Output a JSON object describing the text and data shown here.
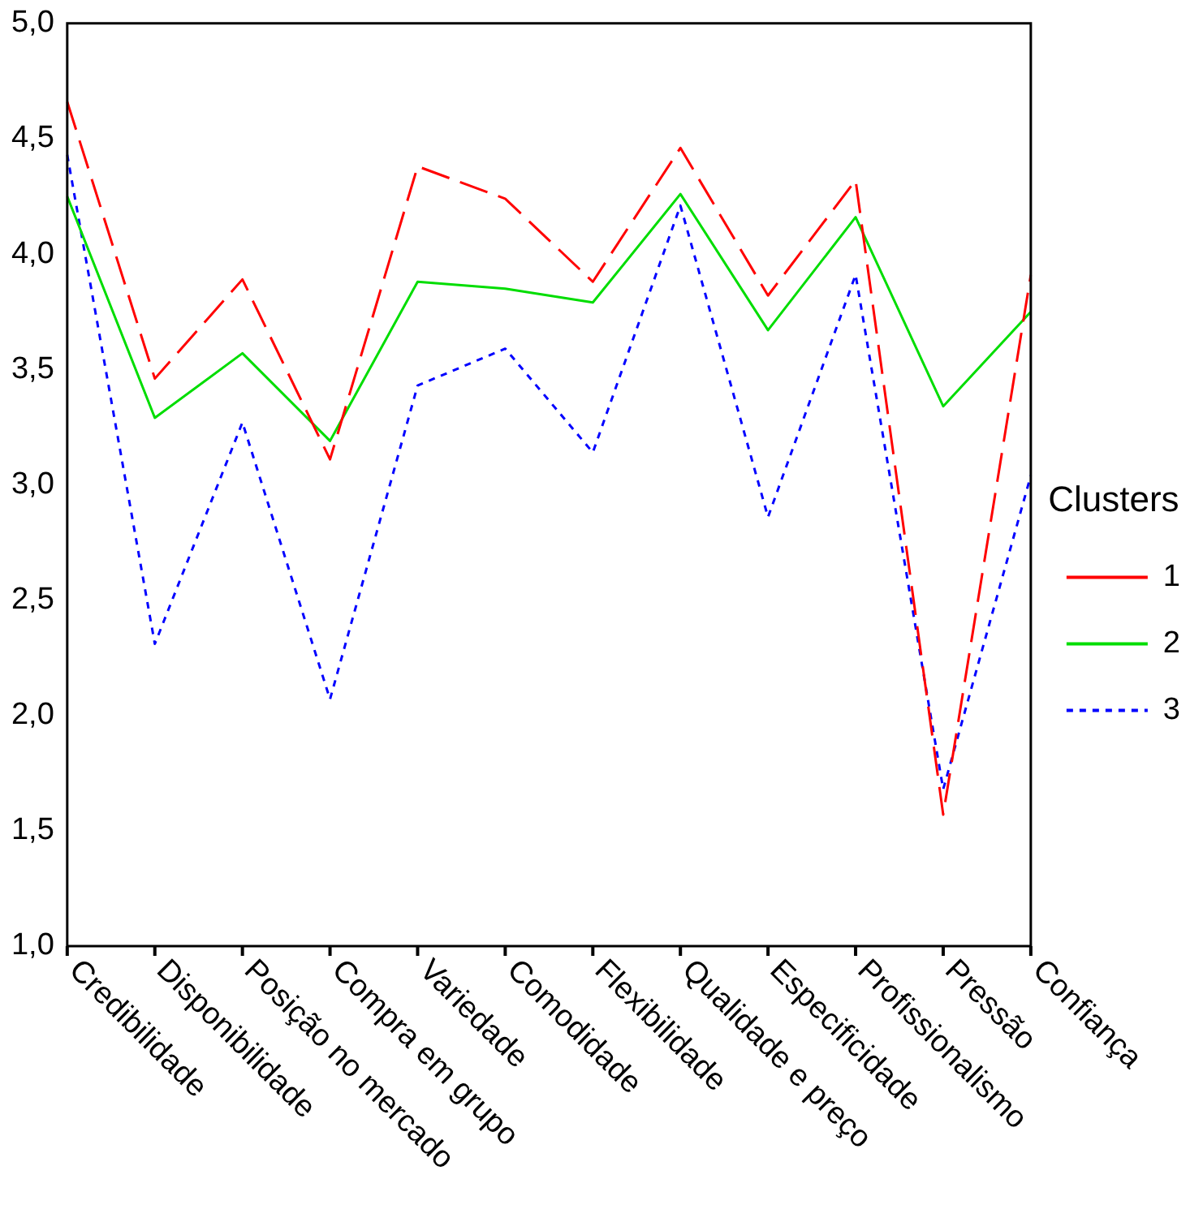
{
  "chart_data": {
    "type": "line",
    "legend_title": "Clusters",
    "legend": "right",
    "grid": false,
    "marker": "none",
    "categories": [
      "Credibilidade",
      "Disponibilidade",
      "Posição no mercado",
      "Compra em grupo",
      "Variedade",
      "Comodidade",
      "Flexibilidade",
      "Qualidade e preço",
      "Especificidade",
      "Profissionalismo",
      "Pressão",
      "Confiança"
    ],
    "ylim": [
      1,
      5
    ],
    "yticks": [
      {
        "value": 1,
        "label": "1,0"
      },
      {
        "value": 1.5,
        "label": "1,5"
      },
      {
        "value": 2,
        "label": "2,0"
      },
      {
        "value": 2.5,
        "label": "2,5"
      },
      {
        "value": 3,
        "label": "3,0"
      },
      {
        "value": 3.5,
        "label": "3,5"
      },
      {
        "value": 4,
        "label": "4,0"
      },
      {
        "value": 4.5,
        "label": "4,5"
      },
      {
        "value": 5,
        "label": "5,0"
      }
    ],
    "series": [
      {
        "name": "1",
        "color": "#ff0000",
        "line_style": "dashed",
        "values": [
          4.66,
          3.46,
          3.89,
          3.11,
          4.38,
          4.24,
          3.88,
          4.46,
          3.82,
          4.32,
          1.57,
          3.91
        ]
      },
      {
        "name": "2",
        "color": "#00dd00",
        "line_style": "solid",
        "values": [
          4.25,
          3.29,
          3.57,
          3.19,
          3.88,
          3.85,
          3.79,
          4.26,
          3.67,
          4.16,
          3.34,
          3.75
        ]
      },
      {
        "name": "3",
        "color": "#0000ff",
        "line_style": "dotted",
        "values": [
          4.43,
          2.31,
          3.27,
          2.07,
          3.43,
          3.59,
          3.14,
          4.21,
          2.86,
          3.91,
          1.68,
          3.04
        ]
      }
    ]
  }
}
